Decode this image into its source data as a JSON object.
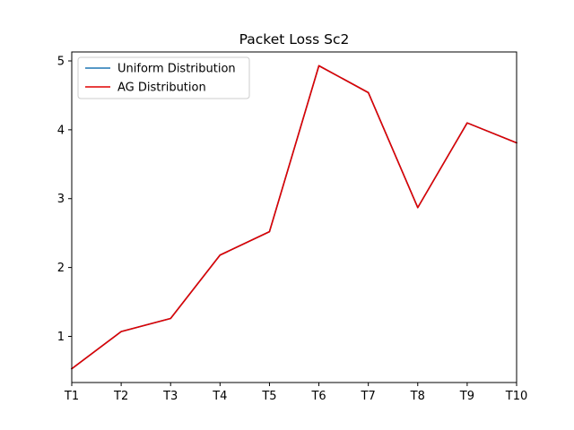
{
  "chart_data": {
    "type": "line",
    "title": "Packet Loss Sc2",
    "xlabel": "",
    "ylabel": "",
    "categories": [
      "T1",
      "T2",
      "T3",
      "T4",
      "T5",
      "T6",
      "T7",
      "T8",
      "T9",
      "T10"
    ],
    "series": [
      {
        "name": "Uniform Distribution",
        "color": "#1f77b4",
        "values": [
          0.53,
          1.07,
          1.26,
          2.18,
          2.52,
          4.93,
          4.54,
          2.87,
          4.1,
          3.81
        ]
      },
      {
        "name": "AG Distribution",
        "color": "#e00000",
        "values": [
          0.53,
          1.07,
          1.26,
          2.18,
          2.52,
          4.93,
          4.54,
          2.87,
          4.1,
          3.81
        ]
      }
    ],
    "ylim": [
      0.33,
      5.13
    ],
    "yticks": [
      1,
      2,
      3,
      4,
      5
    ],
    "legend_position": "top-left",
    "grid": false
  }
}
